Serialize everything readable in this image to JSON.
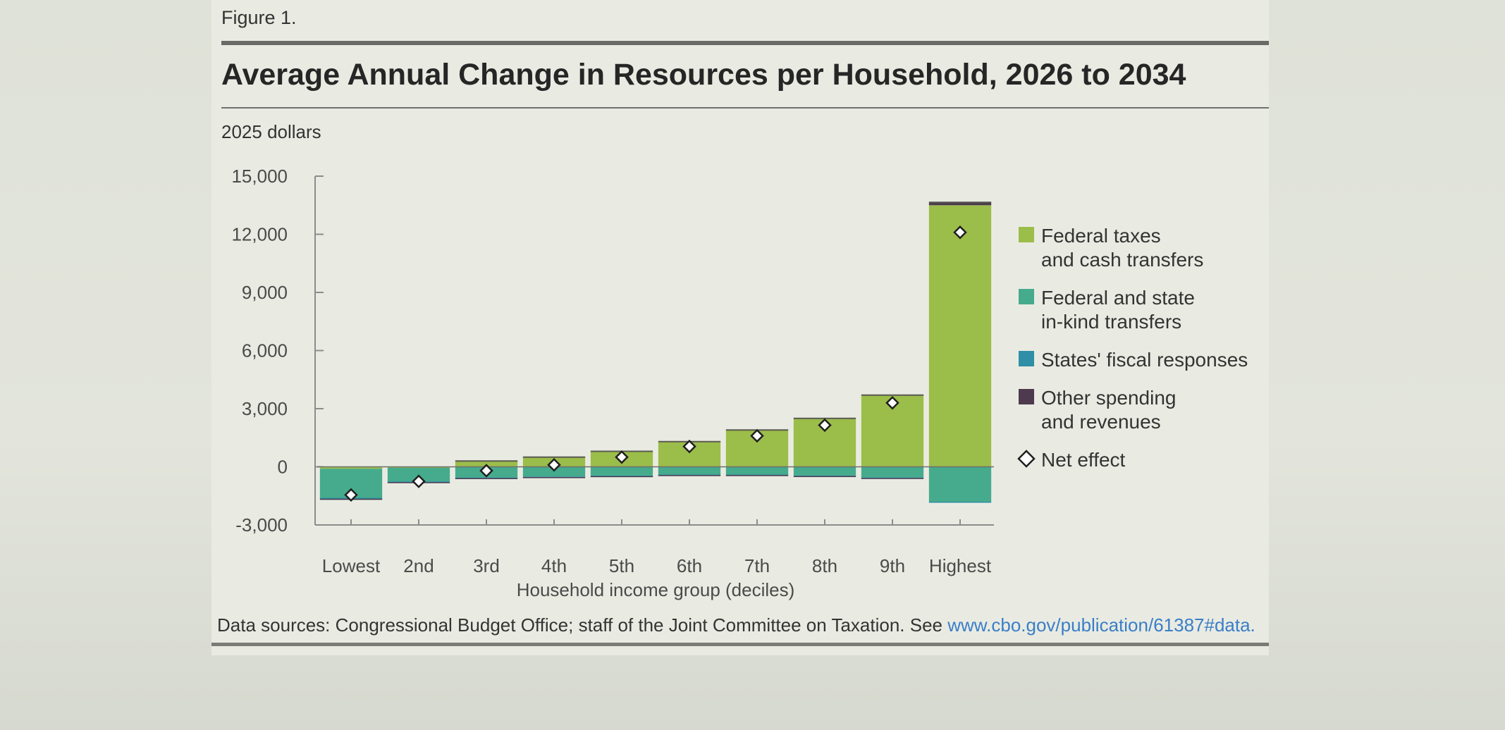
{
  "figure_label": "Figure 1.",
  "source": {
    "text": "Data sources: Congressional Budget Office; staff of the Joint Committee on Taxation. See ",
    "link": "www.cbo.gov/publication/61387#data."
  },
  "colors": {
    "federal_taxes": "#9bbd4a",
    "federal_taxes_top": "#a9c95b",
    "inkind": "#45ab8c",
    "states": "#2e8fa6",
    "other": "#4d3a4f",
    "net_marker_stroke": "#1f1f1f",
    "axis": "#8c8c8c",
    "background": "#e9ebe2"
  },
  "chart_data": {
    "type": "bar",
    "title": "Average Annual Change in Resources per Household, 2026 to 2034",
    "ylabel": "2025 dollars",
    "xlabel": "Household income group (deciles)",
    "ylim": [
      -3000,
      15000
    ],
    "yticks": [
      15000,
      12000,
      9000,
      6000,
      3000,
      0,
      -3000
    ],
    "ytick_labels": [
      "15,000",
      "12,000",
      "9,000",
      "6,000",
      "3,000",
      "0",
      "-3,000"
    ],
    "categories": [
      "Lowest",
      "2nd",
      "3rd",
      "4th",
      "5th",
      "6th",
      "7th",
      "8th",
      "9th",
      "Highest"
    ],
    "series": [
      {
        "name": "Federal taxes and cash transfers",
        "color_key": "federal_taxes",
        "values": [
          -100,
          -50,
          300,
          500,
          800,
          1300,
          1900,
          2500,
          3700,
          13500
        ]
      },
      {
        "name": "Federal and state in-kind transfers",
        "color_key": "inkind",
        "values": [
          -1500,
          -700,
          -550,
          -500,
          -450,
          -400,
          -400,
          -450,
          -550,
          -1800
        ]
      },
      {
        "name": "States' fiscal responses",
        "color_key": "states",
        "values": [
          -50,
          -40,
          -30,
          -30,
          -30,
          -25,
          -25,
          -25,
          -25,
          -25
        ]
      },
      {
        "name": "Other spending and revenues",
        "color_key": "other",
        "values": [
          -20,
          -20,
          -20,
          -20,
          -20,
          -20,
          -20,
          -20,
          -20,
          150
        ]
      }
    ],
    "net_effect": [
      -1450,
      -750,
      -200,
      100,
      500,
      1050,
      1600,
      2150,
      3300,
      12100
    ],
    "legend": {
      "placement": "right",
      "entries": [
        {
          "lines": [
            "Federal taxes",
            "and cash transfers"
          ],
          "marker": "square",
          "color_key": "federal_taxes"
        },
        {
          "lines": [
            "Federal and state",
            "in-kind transfers"
          ],
          "marker": "square",
          "color_key": "inkind"
        },
        {
          "lines": [
            "States' fiscal responses"
          ],
          "marker": "square",
          "color_key": "states"
        },
        {
          "lines": [
            "Other spending",
            "and revenues"
          ],
          "marker": "square",
          "color_key": "other"
        },
        {
          "lines": [
            "Net effect"
          ],
          "marker": "diamond",
          "color_key": "net_marker_stroke"
        }
      ]
    }
  }
}
